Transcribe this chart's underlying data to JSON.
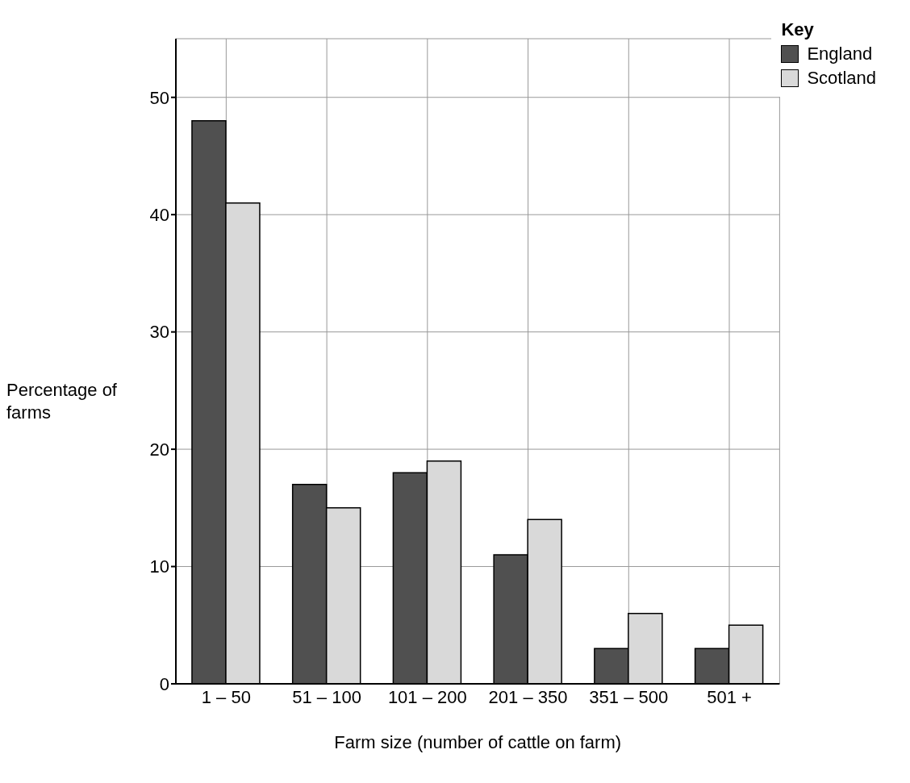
{
  "chart_data": {
    "type": "bar",
    "xlabel": "Farm size (number of cattle on farm)",
    "ylabel": "Percentage of farms",
    "legend_title": "Key",
    "categories": [
      "1 – 50",
      "51 – 100",
      "101 – 200",
      "201 – 350",
      "351 – 500",
      "501 +"
    ],
    "series": [
      {
        "name": "England",
        "color": "#505050",
        "values": [
          48,
          17,
          18,
          11,
          3,
          3
        ]
      },
      {
        "name": "Scotland",
        "color": "#d9d9d9",
        "values": [
          41,
          15,
          19,
          14,
          6,
          5
        ]
      }
    ],
    "ylim": [
      0,
      55
    ],
    "yticks": [
      0,
      10,
      20,
      30,
      40,
      50
    ],
    "grid": true,
    "legend": "top right"
  }
}
